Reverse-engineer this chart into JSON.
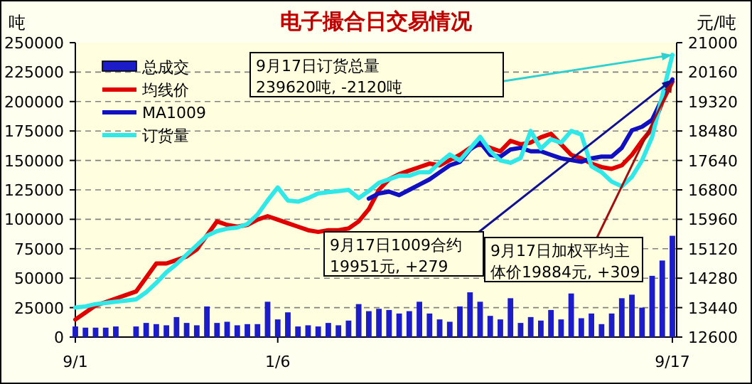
{
  "chart_data": {
    "type": "line",
    "title": "电子撮合日交易情况",
    "ylabel": "吨",
    "y2label": "元/吨",
    "categories": [
      "9/1",
      null,
      null,
      null,
      null,
      null,
      null,
      null,
      null,
      null,
      null,
      null,
      null,
      null,
      null,
      null,
      null,
      null,
      null,
      null,
      "1/6",
      null,
      null,
      null,
      null,
      null,
      null,
      null,
      null,
      null,
      null,
      null,
      null,
      null,
      null,
      null,
      null,
      null,
      null,
      null,
      null,
      null,
      null,
      null,
      null,
      null,
      null,
      null,
      null,
      null,
      null,
      null,
      null,
      null,
      null,
      null,
      null,
      null,
      null,
      "9/17"
    ],
    "series": [
      {
        "name": "总成交",
        "type": "bar",
        "color": "#1c1cc8",
        "values": [
          9000,
          8000,
          8000,
          8000,
          9000,
          null,
          9000,
          12000,
          11000,
          10000,
          17000,
          12000,
          10000,
          26000,
          12000,
          13000,
          10000,
          11000,
          11000,
          30000,
          15000,
          21000,
          9000,
          10000,
          9000,
          12000,
          10000,
          14000,
          28000,
          22000,
          24000,
          23000,
          20000,
          22000,
          30000,
          20000,
          15000,
          13000,
          26000,
          38000,
          30000,
          18000,
          15000,
          33000,
          12000,
          17000,
          14000,
          23000,
          15000,
          37000,
          16000,
          20000,
          11000,
          20000,
          33000,
          36000,
          25000,
          52000,
          65000,
          86000
        ]
      },
      {
        "name": "均线价",
        "axis": "y2",
        "color": "#e00000",
        "values": [
          13100,
          13300,
          13500,
          13600,
          13700,
          13800,
          13900,
          14300,
          14700,
          14700,
          14800,
          14900,
          15100,
          15500,
          15900,
          15800,
          15750,
          15800,
          15950,
          16050,
          15950,
          15850,
          15750,
          15650,
          15600,
          15650,
          15650,
          15700,
          15900,
          16250,
          16800,
          17100,
          17250,
          17350,
          17450,
          17550,
          17500,
          17650,
          17800,
          18000,
          18100,
          18000,
          17900,
          18200,
          18100,
          18150,
          18300,
          18400,
          18100,
          17800,
          17700,
          17550,
          17450,
          17400,
          17500,
          17800,
          18200,
          18550,
          19300,
          19884
        ]
      },
      {
        "name": "MA1009",
        "axis": "y2",
        "color": "#1010c0",
        "values": [
          null,
          null,
          null,
          null,
          null,
          null,
          null,
          null,
          null,
          null,
          null,
          null,
          null,
          null,
          null,
          null,
          null,
          null,
          null,
          null,
          null,
          null,
          null,
          null,
          null,
          null,
          null,
          null,
          null,
          16550,
          16700,
          16750,
          16650,
          16800,
          16950,
          17100,
          17300,
          17500,
          17600,
          17950,
          18150,
          17800,
          17750,
          17950,
          18000,
          17900,
          17900,
          17800,
          17700,
          17650,
          17600,
          17700,
          17750,
          17750,
          18000,
          18500,
          18600,
          18800,
          19400,
          19951
        ]
      },
      {
        "name": "订货量",
        "color": "#30e8e8",
        "values": [
          25000,
          26000,
          28000,
          29000,
          30000,
          31000,
          32000,
          38000,
          46000,
          55000,
          62000,
          70000,
          78000,
          86000,
          90000,
          92000,
          93000,
          96000,
          104000,
          116000,
          127000,
          116000,
          115000,
          118000,
          122000,
          123000,
          124000,
          125000,
          118000,
          124000,
          131000,
          134000,
          137000,
          137000,
          140000,
          140000,
          148000,
          155000,
          150000,
          160000,
          170000,
          158000,
          150000,
          148000,
          152000,
          175000,
          160000,
          168000,
          165000,
          175000,
          172000,
          145000,
          140000,
          132000,
          128000,
          136000,
          150000,
          170000,
          205000,
          239620
        ]
      }
    ],
    "ylim": [
      0,
      250000
    ],
    "yticks": [
      0,
      25000,
      50000,
      75000,
      100000,
      125000,
      150000,
      175000,
      200000,
      225000,
      250000
    ],
    "y2lim": [
      12600,
      21000
    ],
    "y2ticks": [
      12600,
      13440,
      14280,
      15120,
      15960,
      16800,
      17640,
      18480,
      19320,
      20160,
      21000
    ],
    "grid": "y",
    "legend": "top left",
    "marker": "none",
    "line_style": "solid",
    "annotations": [
      {
        "text": "9月17日订货总量\n239620吨, -2120吨",
        "x": "9/17",
        "y": 239620
      },
      "9月17日1009合约\n19951元, +279",
      {
        "text": "9月17日加权平均主体价19884元, +309",
        "x": "9/17",
        "y": 19884
      }
    ]
  }
}
